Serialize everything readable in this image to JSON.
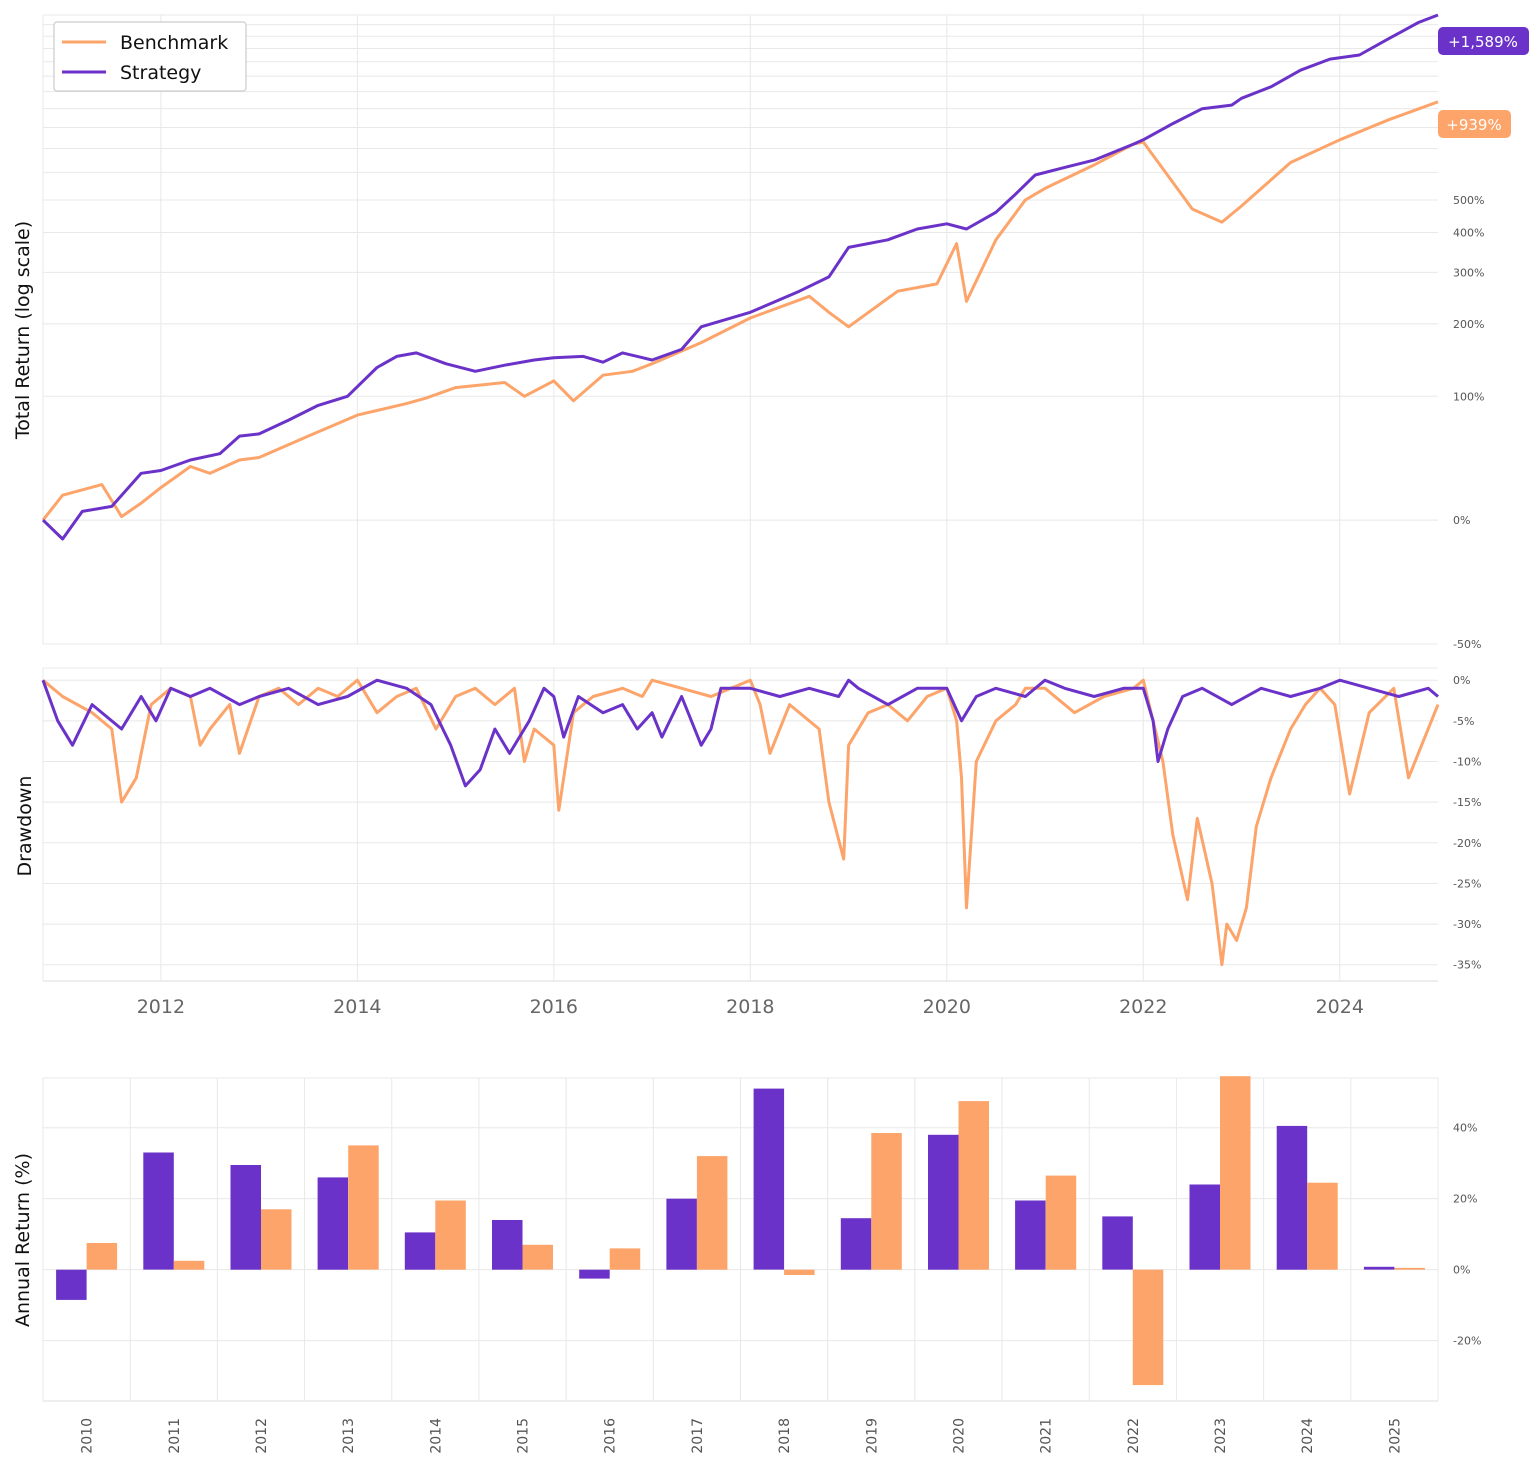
{
  "chart_data": [
    {
      "type": "line",
      "ylabel": "Total Return (log scale)",
      "yscale": "log (growth of 1)",
      "ylim": [
        -0.5,
        15.89
      ],
      "yticks": [
        {
          "value": -0.5,
          "label": "-50%"
        },
        {
          "value": 0,
          "label": "0%"
        },
        {
          "value": 1,
          "label": "100%"
        },
        {
          "value": 2,
          "label": "200%"
        },
        {
          "value": 3,
          "label": "300%"
        },
        {
          "value": 4,
          "label": "400%"
        },
        {
          "value": 5,
          "label": "500%"
        }
      ],
      "xlim": [
        2010.8,
        2025.0
      ],
      "legend": {
        "position": "top-left",
        "entries": [
          "Benchmark",
          "Strategy"
        ]
      },
      "end_labels": [
        {
          "series": "Strategy",
          "text": "+1,589%"
        },
        {
          "series": "Benchmark",
          "text": "+939%"
        }
      ],
      "series": [
        {
          "name": "Benchmark",
          "color": "#FCA46A",
          "x": [
            2010.8,
            2011.0,
            2011.4,
            2011.6,
            2011.8,
            2012.0,
            2012.3,
            2012.5,
            2012.8,
            2013.0,
            2013.5,
            2014.0,
            2014.5,
            2014.7,
            2015.0,
            2015.5,
            2015.7,
            2016.0,
            2016.2,
            2016.5,
            2016.8,
            2017.0,
            2017.5,
            2018.0,
            2018.6,
            2018.8,
            2019.0,
            2019.5,
            2019.9,
            2020.1,
            2020.2,
            2020.5,
            2020.8,
            2021.0,
            2021.5,
            2021.9,
            2022.0,
            2022.5,
            2022.8,
            2023.0,
            2023.5,
            2024.0,
            2024.5,
            2025.0
          ],
          "y": [
            0.0,
            0.15,
            0.22,
            0.02,
            0.1,
            0.2,
            0.35,
            0.3,
            0.4,
            0.42,
            0.6,
            0.8,
            0.92,
            0.98,
            1.1,
            1.16,
            1.0,
            1.18,
            0.95,
            1.25,
            1.3,
            1.4,
            1.7,
            2.1,
            2.5,
            2.2,
            1.95,
            2.6,
            2.75,
            3.7,
            2.4,
            3.8,
            5.0,
            5.4,
            6.3,
            7.2,
            7.3,
            4.7,
            4.3,
            4.8,
            6.4,
            7.4,
            8.4,
            9.39
          ]
        },
        {
          "name": "Strategy",
          "color": "#6A32C8",
          "x": [
            2010.8,
            2011.0,
            2011.2,
            2011.5,
            2011.8,
            2012.0,
            2012.3,
            2012.6,
            2012.8,
            2013.0,
            2013.3,
            2013.6,
            2013.9,
            2014.2,
            2014.4,
            2014.6,
            2014.9,
            2015.2,
            2015.5,
            2015.8,
            2016.0,
            2016.3,
            2016.5,
            2016.7,
            2017.0,
            2017.3,
            2017.5,
            2018.0,
            2018.5,
            2018.8,
            2019.0,
            2019.4,
            2019.7,
            2020.0,
            2020.2,
            2020.5,
            2020.7,
            2020.9,
            2021.2,
            2021.5,
            2021.9,
            2022.0,
            2022.3,
            2022.6,
            2022.9,
            2023.0,
            2023.3,
            2023.6,
            2023.9,
            2024.2,
            2024.5,
            2024.8,
            2025.0
          ],
          "y": [
            0.0,
            -0.1,
            0.05,
            0.08,
            0.3,
            0.32,
            0.4,
            0.45,
            0.6,
            0.62,
            0.75,
            0.9,
            1.0,
            1.35,
            1.5,
            1.55,
            1.4,
            1.3,
            1.38,
            1.45,
            1.48,
            1.5,
            1.42,
            1.55,
            1.45,
            1.6,
            1.95,
            2.2,
            2.6,
            2.9,
            3.6,
            3.8,
            4.1,
            4.25,
            4.1,
            4.6,
            5.2,
            5.9,
            6.2,
            6.5,
            7.2,
            7.4,
            8.2,
            9.0,
            9.2,
            9.6,
            10.3,
            11.4,
            12.2,
            12.5,
            13.8,
            15.2,
            15.89
          ]
        }
      ]
    },
    {
      "type": "line",
      "ylabel": "Drawdown",
      "ylim": [
        -37,
        1.5
      ],
      "yticks": [
        {
          "value": 0,
          "label": "0%"
        },
        {
          "value": -5,
          "label": "-5%"
        },
        {
          "value": -10,
          "label": "-10%"
        },
        {
          "value": -15,
          "label": "-15%"
        },
        {
          "value": -20,
          "label": "-20%"
        },
        {
          "value": -25,
          "label": "-25%"
        },
        {
          "value": -30,
          "label": "-30%"
        },
        {
          "value": -35,
          "label": "-35%"
        }
      ],
      "xlim": [
        2010.8,
        2025.0
      ],
      "xticks": [
        {
          "value": 2012,
          "label": "2012"
        },
        {
          "value": 2014,
          "label": "2014"
        },
        {
          "value": 2016,
          "label": "2016"
        },
        {
          "value": 2018,
          "label": "2018"
        },
        {
          "value": 2020,
          "label": "2020"
        },
        {
          "value": 2022,
          "label": "2022"
        },
        {
          "value": 2024,
          "label": "2024"
        }
      ],
      "series": [
        {
          "name": "Benchmark",
          "color": "#FCA46A",
          "x": [
            2010.8,
            2011.0,
            2011.3,
            2011.5,
            2011.6,
            2011.75,
            2011.9,
            2012.1,
            2012.3,
            2012.4,
            2012.5,
            2012.7,
            2012.8,
            2013.0,
            2013.2,
            2013.4,
            2013.6,
            2013.8,
            2014.0,
            2014.2,
            2014.4,
            2014.6,
            2014.8,
            2015.0,
            2015.2,
            2015.4,
            2015.6,
            2015.7,
            2015.8,
            2016.0,
            2016.05,
            2016.2,
            2016.4,
            2016.7,
            2016.9,
            2017.0,
            2017.3,
            2017.6,
            2018.0,
            2018.1,
            2018.2,
            2018.4,
            2018.7,
            2018.8,
            2018.95,
            2019.0,
            2019.2,
            2019.4,
            2019.6,
            2019.8,
            2020.0,
            2020.1,
            2020.15,
            2020.2,
            2020.3,
            2020.5,
            2020.7,
            2020.8,
            2021.0,
            2021.3,
            2021.6,
            2021.9,
            2022.0,
            2022.1,
            2022.2,
            2022.3,
            2022.45,
            2022.55,
            2022.7,
            2022.8,
            2022.85,
            2022.95,
            2023.05,
            2023.15,
            2023.3,
            2023.5,
            2023.65,
            2023.8,
            2023.95,
            2024.1,
            2024.3,
            2024.55,
            2024.7,
            2025.0
          ],
          "y": [
            0,
            -2,
            -4,
            -6,
            -15,
            -12,
            -3,
            -1,
            -2,
            -8,
            -6,
            -3,
            -9,
            -2,
            -1,
            -3,
            -1,
            -2,
            0,
            -4,
            -2,
            -1,
            -6,
            -2,
            -1,
            -3,
            -1,
            -10,
            -6,
            -8,
            -16,
            -4,
            -2,
            -1,
            -2,
            0,
            -1,
            -2,
            0,
            -3,
            -9,
            -3,
            -6,
            -15,
            -22,
            -8,
            -4,
            -3,
            -5,
            -2,
            -1,
            -5,
            -12,
            -28,
            -10,
            -5,
            -3,
            -1,
            -1,
            -4,
            -2,
            -1,
            0,
            -5,
            -10,
            -19,
            -27,
            -17,
            -25,
            -35,
            -30,
            -32,
            -28,
            -18,
            -12,
            -6,
            -3,
            -1,
            -3,
            -14,
            -4,
            -1,
            -12,
            -3
          ]
        },
        {
          "name": "Strategy",
          "color": "#6A32C8",
          "x": [
            2010.8,
            2010.95,
            2011.1,
            2011.3,
            2011.6,
            2011.8,
            2011.95,
            2012.1,
            2012.3,
            2012.5,
            2012.8,
            2013.0,
            2013.3,
            2013.6,
            2013.9,
            2014.2,
            2014.5,
            2014.75,
            2014.95,
            2015.1,
            2015.25,
            2015.4,
            2015.55,
            2015.75,
            2015.9,
            2016.0,
            2016.1,
            2016.25,
            2016.5,
            2016.7,
            2016.85,
            2017.0,
            2017.1,
            2017.3,
            2017.5,
            2017.6,
            2017.7,
            2018.0,
            2018.3,
            2018.6,
            2018.9,
            2019.0,
            2019.1,
            2019.4,
            2019.7,
            2020.0,
            2020.15,
            2020.3,
            2020.5,
            2020.8,
            2021.0,
            2021.2,
            2021.5,
            2021.8,
            2022.0,
            2022.1,
            2022.15,
            2022.25,
            2022.4,
            2022.6,
            2022.9,
            2023.2,
            2023.5,
            2023.8,
            2024.0,
            2024.3,
            2024.6,
            2024.9,
            2025.0
          ],
          "y": [
            0,
            -5,
            -8,
            -3,
            -6,
            -2,
            -5,
            -1,
            -2,
            -1,
            -3,
            -2,
            -1,
            -3,
            -2,
            0,
            -1,
            -3,
            -8,
            -13,
            -11,
            -6,
            -9,
            -5,
            -1,
            -2,
            -7,
            -2,
            -4,
            -3,
            -6,
            -4,
            -7,
            -2,
            -8,
            -6,
            -1,
            -1,
            -2,
            -1,
            -2,
            0,
            -1,
            -3,
            -1,
            -1,
            -5,
            -2,
            -1,
            -2,
            0,
            -1,
            -2,
            -1,
            -1,
            -5,
            -10,
            -6,
            -2,
            -1,
            -3,
            -1,
            -2,
            -1,
            0,
            -1,
            -2,
            -1,
            -2
          ]
        }
      ]
    },
    {
      "type": "bar",
      "ylabel": "Annual Return (%)",
      "ylim": [
        -37,
        54
      ],
      "yticks": [
        {
          "value": -20,
          "label": "-20%"
        },
        {
          "value": 0,
          "label": "0%"
        },
        {
          "value": 20,
          "label": "20%"
        },
        {
          "value": 40,
          "label": "40%"
        }
      ],
      "categories": [
        "2010",
        "2011",
        "2012",
        "2013",
        "2014",
        "2015",
        "2016",
        "2017",
        "2018",
        "2019",
        "2020",
        "2021",
        "2022",
        "2023",
        "2024",
        "2025"
      ],
      "series": [
        {
          "name": "Strategy",
          "color": "#6A32C8",
          "values": [
            -8.5,
            33,
            29.5,
            26,
            10.5,
            14,
            -2.5,
            20,
            51,
            14.5,
            38,
            19.5,
            15,
            24,
            40.5,
            0.8
          ]
        },
        {
          "name": "Benchmark",
          "color": "#FCA46A",
          "values": [
            7.5,
            2.5,
            17,
            35,
            19.5,
            7,
            6,
            32,
            -1.5,
            38.5,
            47.5,
            26.5,
            -32.5,
            54.5,
            24.5,
            0.5
          ]
        }
      ]
    }
  ]
}
